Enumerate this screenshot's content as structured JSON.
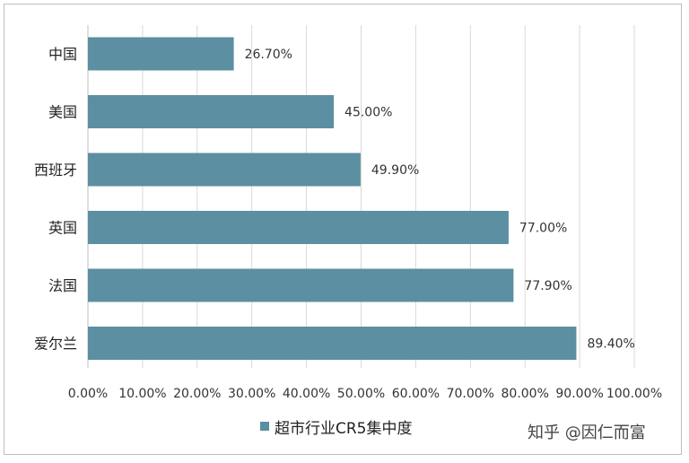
{
  "colors": {
    "bar": "#5b8fa1",
    "grid": "#d9d9d9",
    "axis": "#bfbfbf",
    "text": "#333333"
  },
  "legend": {
    "label": "超市行业CR5集中度",
    "swatch_color": "#5b8fa1",
    "placement": "bottom"
  },
  "watermark": "知乎 @因仁而富",
  "chart_data": {
    "type": "bar",
    "orientation": "horizontal",
    "categories": [
      "中国",
      "美国",
      "西班牙",
      "英国",
      "法国",
      "爱尔兰"
    ],
    "series": [
      {
        "name": "超市行业CR5集中度",
        "values": [
          26.7,
          45.0,
          49.9,
          77.0,
          77.9,
          89.4
        ],
        "labels": [
          "26.70%",
          "45.00%",
          "49.90%",
          "77.00%",
          "77.90%",
          "89.40%"
        ]
      }
    ],
    "xlim": [
      0,
      100
    ],
    "x_ticks": [
      "0.00%",
      "10.00%",
      "20.00%",
      "30.00%",
      "40.00%",
      "50.00%",
      "60.00%",
      "70.00%",
      "80.00%",
      "90.00%",
      "100.00%"
    ],
    "grid": true,
    "title": "",
    "xlabel": "",
    "ylabel": ""
  }
}
